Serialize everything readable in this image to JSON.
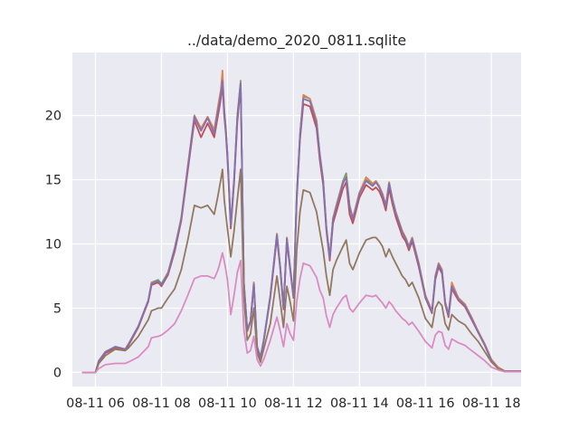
{
  "chart_data": {
    "type": "line",
    "title": "../data/demo_2020_0811.sqlite",
    "xlabel": "",
    "ylabel": "",
    "grid": true,
    "legend": "none",
    "xlim": [
      5.3,
      18.9
    ],
    "ylim": [
      -1.1,
      24.9
    ],
    "x_ticks": [
      {
        "value": 6,
        "label": "08-11 06"
      },
      {
        "value": 8,
        "label": "08-11 08"
      },
      {
        "value": 10,
        "label": "08-11 10"
      },
      {
        "value": 12,
        "label": "08-11 12"
      },
      {
        "value": 14,
        "label": "08-11 14"
      },
      {
        "value": 16,
        "label": "08-11 16"
      },
      {
        "value": 18,
        "label": "08-11 18"
      }
    ],
    "y_ticks": [
      {
        "value": 0,
        "label": "0"
      },
      {
        "value": 5,
        "label": "5"
      },
      {
        "value": 10,
        "label": "10"
      },
      {
        "value": 15,
        "label": "15"
      },
      {
        "value": 20,
        "label": "20"
      }
    ],
    "series": [
      {
        "color": "#55a868",
        "x": [
          5.6,
          5.9,
          6.0,
          6.1,
          6.3,
          6.6,
          6.9,
          7.0,
          7.3,
          7.6,
          7.7,
          7.9,
          8.0,
          8.2,
          8.4,
          8.6,
          8.8,
          9.0,
          9.2,
          9.4,
          9.6,
          9.7,
          9.75,
          9.8,
          9.85,
          9.9,
          9.95,
          10.0,
          10.1,
          10.2,
          10.3,
          10.4,
          10.5,
          10.6,
          10.7,
          10.8,
          10.9,
          11.0,
          11.1,
          11.3,
          11.5,
          11.6,
          11.7,
          11.8,
          11.9,
          12.0,
          12.1,
          12.2,
          12.3,
          12.5,
          12.7,
          12.8,
          12.9,
          13.0,
          13.1,
          13.2,
          13.3,
          13.5,
          13.6,
          13.7,
          13.8,
          14.0,
          14.2,
          14.4,
          14.5,
          14.6,
          14.7,
          14.8,
          14.9,
          15.0,
          15.1,
          15.3,
          15.4,
          15.5,
          15.6,
          15.8,
          16.0,
          16.2,
          16.3,
          16.4,
          16.5,
          16.6,
          16.7,
          16.8,
          17.0,
          17.2,
          17.4,
          17.6,
          17.8,
          18.0,
          18.2,
          18.4,
          18.5,
          18.6,
          18.9
        ],
        "values": [
          0,
          0,
          0,
          0.9,
          1.6,
          2.0,
          1.8,
          2.2,
          3.6,
          5.6,
          7.0,
          7.2,
          6.9,
          7.8,
          9.7,
          12.0,
          16.0,
          20.0,
          18.9,
          19.9,
          18.7,
          20.3,
          21.0,
          21.8,
          23.0,
          20.5,
          19.0,
          17.0,
          11.5,
          15.0,
          20.0,
          22.7,
          7.0,
          3.3,
          4.0,
          7.0,
          2.0,
          1.2,
          2.5,
          6.0,
          10.8,
          8.2,
          5.0,
          10.5,
          8.2,
          6.0,
          13.8,
          18.5,
          21.5,
          21.3,
          19.6,
          17.0,
          15.0,
          11.3,
          9.0,
          12.0,
          13.0,
          14.9,
          15.5,
          13.0,
          12.0,
          14.0,
          15.0,
          14.6,
          14.9,
          14.5,
          13.9,
          13.0,
          14.8,
          13.5,
          12.5,
          11.0,
          10.5,
          9.8,
          10.5,
          8.5,
          6.0,
          4.8,
          7.5,
          8.5,
          8.0,
          5.5,
          4.5,
          6.8,
          5.8,
          5.3,
          4.2,
          3.2,
          2.2,
          1.0,
          0.4,
          0.1,
          0.1,
          0.1,
          0.1
        ]
      },
      {
        "color": "#dd8452",
        "x": [
          5.6,
          5.9,
          6.0,
          6.1,
          6.3,
          6.6,
          6.9,
          7.0,
          7.3,
          7.6,
          7.7,
          7.9,
          8.0,
          8.2,
          8.4,
          8.6,
          8.8,
          9.0,
          9.2,
          9.4,
          9.6,
          9.7,
          9.75,
          9.8,
          9.85,
          9.9,
          9.95,
          10.0,
          10.1,
          10.2,
          10.3,
          10.4,
          10.5,
          10.6,
          10.7,
          10.8,
          10.9,
          11.0,
          11.1,
          11.3,
          11.5,
          11.6,
          11.7,
          11.8,
          11.9,
          12.0,
          12.1,
          12.2,
          12.3,
          12.5,
          12.7,
          12.8,
          12.9,
          13.0,
          13.1,
          13.2,
          13.3,
          13.5,
          13.6,
          13.7,
          13.8,
          14.0,
          14.2,
          14.4,
          14.5,
          14.6,
          14.7,
          14.8,
          14.9,
          15.0,
          15.1,
          15.3,
          15.4,
          15.5,
          15.6,
          15.8,
          16.0,
          16.2,
          16.3,
          16.4,
          16.5,
          16.6,
          16.7,
          16.8,
          17.0,
          17.2,
          17.4,
          17.6,
          17.8,
          18.0,
          18.2,
          18.4,
          18.5,
          18.6,
          18.9
        ],
        "values": [
          0,
          0,
          0,
          0.9,
          1.6,
          2.0,
          1.8,
          2.2,
          3.6,
          5.6,
          7.0,
          7.1,
          6.8,
          7.8,
          9.6,
          12.1,
          16.1,
          20.0,
          19.0,
          19.9,
          18.9,
          20.5,
          21.3,
          22.0,
          23.5,
          20.5,
          19.0,
          17.0,
          11.5,
          15.0,
          20.0,
          22.6,
          7.0,
          3.3,
          4.0,
          7.0,
          2.0,
          1.2,
          2.5,
          6.0,
          10.8,
          8.2,
          5.0,
          10.5,
          8.2,
          6.0,
          13.8,
          18.5,
          21.6,
          21.3,
          19.6,
          17.0,
          15.0,
          11.3,
          9.0,
          12.0,
          13.0,
          14.8,
          15.3,
          13.0,
          12.0,
          14.0,
          15.2,
          14.7,
          14.9,
          14.5,
          13.9,
          13.0,
          14.8,
          13.5,
          12.5,
          11.0,
          10.5,
          9.8,
          10.5,
          8.5,
          6.0,
          4.8,
          7.5,
          8.5,
          8.0,
          5.5,
          4.5,
          7.0,
          5.8,
          5.3,
          4.3,
          3.2,
          2.2,
          1.0,
          0.4,
          0.1,
          0.1,
          0.1,
          0.1
        ]
      },
      {
        "color": "#c44e52",
        "x": [
          5.6,
          5.9,
          6.0,
          6.1,
          6.3,
          6.6,
          6.9,
          7.0,
          7.3,
          7.6,
          7.7,
          7.9,
          8.0,
          8.2,
          8.4,
          8.6,
          8.8,
          9.0,
          9.2,
          9.4,
          9.6,
          9.7,
          9.75,
          9.8,
          9.85,
          9.9,
          9.95,
          10.0,
          10.1,
          10.2,
          10.3,
          10.4,
          10.5,
          10.6,
          10.7,
          10.8,
          10.9,
          11.0,
          11.1,
          11.3,
          11.5,
          11.6,
          11.7,
          11.8,
          11.9,
          12.0,
          12.1,
          12.2,
          12.3,
          12.5,
          12.7,
          12.8,
          12.9,
          13.0,
          13.1,
          13.2,
          13.3,
          13.5,
          13.6,
          13.7,
          13.8,
          14.0,
          14.2,
          14.4,
          14.5,
          14.6,
          14.7,
          14.8,
          14.9,
          15.0,
          15.1,
          15.3,
          15.4,
          15.5,
          15.6,
          15.8,
          16.0,
          16.2,
          16.3,
          16.4,
          16.5,
          16.6,
          16.7,
          16.8,
          17.0,
          17.2,
          17.4,
          17.6,
          17.8,
          18.0,
          18.2,
          18.4,
          18.5,
          18.6,
          18.9
        ],
        "values": [
          0,
          0,
          0,
          0.8,
          1.5,
          1.9,
          1.7,
          2.1,
          3.5,
          5.5,
          6.8,
          7.0,
          6.7,
          7.6,
          9.4,
          11.8,
          15.7,
          19.6,
          18.3,
          19.4,
          18.3,
          19.8,
          20.5,
          21.3,
          22.4,
          20.0,
          18.6,
          16.6,
          11.2,
          14.7,
          19.5,
          22.2,
          6.8,
          3.2,
          3.9,
          6.8,
          1.9,
          1.1,
          2.4,
          5.8,
          10.5,
          8.0,
          4.9,
          10.2,
          8.0,
          5.8,
          13.4,
          18.1,
          20.9,
          20.7,
          19.0,
          16.5,
          14.6,
          11.0,
          8.7,
          11.6,
          12.5,
          14.3,
          14.8,
          12.3,
          11.6,
          13.6,
          14.6,
          14.2,
          14.4,
          14.1,
          13.5,
          12.6,
          14.3,
          13.1,
          12.1,
          10.6,
          10.2,
          9.5,
          10.2,
          8.2,
          5.8,
          4.6,
          7.2,
          8.2,
          7.7,
          5.3,
          4.3,
          6.5,
          5.6,
          5.1,
          4.1,
          3.1,
          2.1,
          0.9,
          0.3,
          0.1,
          0.1,
          0.1,
          0.1
        ]
      },
      {
        "color": "#8172b3",
        "x": [
          5.6,
          5.9,
          6.0,
          6.1,
          6.3,
          6.6,
          6.9,
          7.0,
          7.3,
          7.6,
          7.7,
          7.9,
          8.0,
          8.2,
          8.4,
          8.6,
          8.8,
          9.0,
          9.2,
          9.4,
          9.6,
          9.7,
          9.75,
          9.8,
          9.85,
          9.9,
          9.95,
          10.0,
          10.1,
          10.2,
          10.3,
          10.4,
          10.5,
          10.6,
          10.7,
          10.8,
          10.9,
          11.0,
          11.1,
          11.3,
          11.5,
          11.6,
          11.7,
          11.8,
          11.9,
          12.0,
          12.1,
          12.2,
          12.3,
          12.5,
          12.7,
          12.8,
          12.9,
          13.0,
          13.1,
          13.2,
          13.3,
          13.5,
          13.6,
          13.7,
          13.8,
          14.0,
          14.2,
          14.4,
          14.5,
          14.6,
          14.7,
          14.8,
          14.9,
          15.0,
          15.1,
          15.3,
          15.4,
          15.5,
          15.6,
          15.8,
          16.0,
          16.2,
          16.3,
          16.4,
          16.5,
          16.6,
          16.7,
          16.8,
          17.0,
          17.2,
          17.4,
          17.6,
          17.8,
          18.0,
          18.2,
          18.4,
          18.5,
          18.6,
          18.9
        ],
        "values": [
          0,
          0,
          0,
          0.9,
          1.6,
          2.0,
          1.8,
          2.2,
          3.6,
          5.6,
          6.9,
          7.1,
          6.8,
          7.7,
          9.6,
          11.9,
          15.9,
          19.9,
          18.8,
          19.8,
          18.6,
          20.2,
          20.9,
          21.6,
          22.7,
          20.4,
          18.9,
          16.9,
          11.4,
          14.9,
          19.9,
          22.5,
          6.9,
          3.3,
          4.0,
          6.9,
          2.0,
          1.2,
          2.5,
          5.9,
          10.7,
          8.1,
          5.0,
          10.4,
          8.1,
          5.9,
          13.7,
          18.4,
          21.3,
          21.1,
          19.4,
          16.9,
          14.9,
          11.2,
          8.9,
          11.9,
          12.9,
          14.7,
          15.2,
          12.9,
          11.9,
          13.9,
          14.9,
          14.5,
          14.8,
          14.4,
          13.8,
          12.9,
          14.7,
          13.4,
          12.4,
          10.9,
          10.4,
          9.7,
          10.4,
          8.4,
          5.9,
          4.7,
          7.4,
          8.4,
          7.9,
          5.4,
          4.4,
          6.7,
          5.7,
          5.2,
          4.2,
          3.1,
          2.1,
          0.9,
          0.3,
          0.1,
          0.1,
          0.1,
          0.1
        ]
      },
      {
        "color": "#937860",
        "x": [
          5.6,
          5.9,
          6.0,
          6.1,
          6.3,
          6.6,
          6.9,
          7.0,
          7.3,
          7.6,
          7.7,
          7.9,
          8.0,
          8.2,
          8.4,
          8.6,
          8.8,
          9.0,
          9.2,
          9.4,
          9.6,
          9.7,
          9.75,
          9.8,
          9.85,
          9.9,
          9.95,
          10.0,
          10.1,
          10.2,
          10.3,
          10.4,
          10.5,
          10.6,
          10.7,
          10.8,
          10.9,
          11.0,
          11.1,
          11.3,
          11.5,
          11.6,
          11.7,
          11.8,
          11.9,
          12.0,
          12.1,
          12.2,
          12.3,
          12.5,
          12.7,
          12.8,
          12.9,
          13.0,
          13.1,
          13.2,
          13.3,
          13.5,
          13.6,
          13.7,
          13.8,
          14.0,
          14.2,
          14.4,
          14.5,
          14.6,
          14.7,
          14.8,
          14.9,
          15.0,
          15.1,
          15.3,
          15.4,
          15.5,
          15.6,
          15.8,
          16.0,
          16.2,
          16.3,
          16.4,
          16.5,
          16.6,
          16.7,
          16.8,
          17.0,
          17.2,
          17.4,
          17.6,
          17.8,
          18.0,
          18.2,
          18.4,
          18.5,
          18.6,
          18.9
        ],
        "values": [
          0,
          0,
          0,
          0.7,
          1.3,
          1.8,
          1.7,
          1.9,
          2.8,
          4.1,
          4.8,
          5.0,
          5.0,
          5.8,
          6.5,
          8.0,
          10.3,
          13.0,
          12.8,
          13.0,
          12.3,
          13.6,
          14.3,
          15.0,
          15.8,
          13.5,
          12.3,
          11.2,
          9.0,
          11.0,
          13.5,
          15.8,
          5.8,
          2.5,
          3.0,
          5.0,
          1.5,
          0.8,
          1.8,
          3.8,
          7.5,
          5.5,
          3.5,
          6.7,
          5.5,
          4.0,
          9.5,
          12.5,
          14.2,
          14.0,
          12.5,
          11.0,
          9.5,
          7.5,
          6.0,
          8.0,
          8.7,
          9.8,
          10.3,
          8.5,
          8.0,
          9.3,
          10.3,
          10.5,
          10.5,
          10.2,
          9.8,
          9.0,
          9.6,
          9.0,
          8.5,
          7.5,
          7.2,
          6.7,
          7.0,
          5.8,
          4.2,
          3.5,
          5.0,
          5.5,
          5.2,
          3.8,
          3.3,
          4.5,
          4.0,
          3.7,
          3.0,
          2.4,
          1.6,
          0.8,
          0.3,
          0.1,
          0.1,
          0.1,
          0.1
        ]
      },
      {
        "color": "#da8bc3",
        "x": [
          5.6,
          5.9,
          6.0,
          6.1,
          6.3,
          6.6,
          6.9,
          7.0,
          7.3,
          7.6,
          7.7,
          7.9,
          8.0,
          8.2,
          8.4,
          8.6,
          8.8,
          9.0,
          9.2,
          9.4,
          9.6,
          9.7,
          9.75,
          9.8,
          9.85,
          9.9,
          9.95,
          10.0,
          10.1,
          10.2,
          10.3,
          10.4,
          10.5,
          10.6,
          10.7,
          10.8,
          10.9,
          11.0,
          11.1,
          11.3,
          11.5,
          11.6,
          11.7,
          11.8,
          11.9,
          12.0,
          12.1,
          12.2,
          12.3,
          12.5,
          12.7,
          12.8,
          12.9,
          13.0,
          13.1,
          13.2,
          13.3,
          13.5,
          13.6,
          13.7,
          13.8,
          14.0,
          14.2,
          14.4,
          14.5,
          14.6,
          14.7,
          14.8,
          14.9,
          15.0,
          15.1,
          15.3,
          15.4,
          15.5,
          15.6,
          15.8,
          16.0,
          16.2,
          16.3,
          16.4,
          16.5,
          16.6,
          16.7,
          16.8,
          17.0,
          17.2,
          17.4,
          17.6,
          17.8,
          18.0,
          18.2,
          18.4,
          18.5,
          18.6,
          18.9
        ],
        "values": [
          0,
          0,
          0,
          0.3,
          0.6,
          0.7,
          0.7,
          0.8,
          1.2,
          2.0,
          2.7,
          2.8,
          2.9,
          3.3,
          3.8,
          4.8,
          6.0,
          7.3,
          7.5,
          7.5,
          7.3,
          7.9,
          8.3,
          8.8,
          9.3,
          8.7,
          8.0,
          7.2,
          4.5,
          6.0,
          7.8,
          8.7,
          3.3,
          1.5,
          1.7,
          2.8,
          1.0,
          0.5,
          1.0,
          2.5,
          4.3,
          3.2,
          2.0,
          3.8,
          3.0,
          2.5,
          5.5,
          7.3,
          8.5,
          8.3,
          7.4,
          6.4,
          5.8,
          4.4,
          3.5,
          4.5,
          5.0,
          5.8,
          6.0,
          5.0,
          4.7,
          5.4,
          6.0,
          5.9,
          6.0,
          5.7,
          5.4,
          5.0,
          5.5,
          5.2,
          4.8,
          4.2,
          4.0,
          3.7,
          3.9,
          3.2,
          2.4,
          1.9,
          2.9,
          3.2,
          3.1,
          2.1,
          1.8,
          2.6,
          2.3,
          2.1,
          1.7,
          1.3,
          0.9,
          0.4,
          0.2,
          0.05,
          0.05,
          0.05,
          0.05
        ]
      }
    ]
  }
}
